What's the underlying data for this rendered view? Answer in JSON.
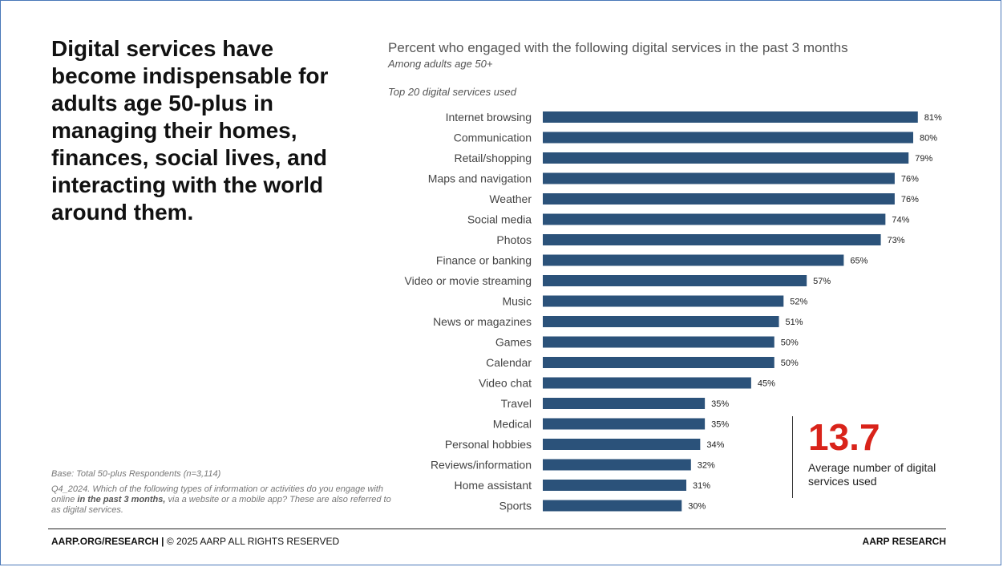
{
  "headline": "Digital services have become indispensable for adults age 50-plus in managing their homes, finances, social lives, and interacting with the world around them.",
  "chart_data": {
    "type": "bar",
    "orientation": "horizontal",
    "title": "Percent who engaged with the following digital services in the past 3 months",
    "subtitle": "Among adults age 50+",
    "caption": "Top 20 digital services used",
    "categories": [
      "Internet browsing",
      "Communication",
      "Retail/shopping",
      "Maps and navigation",
      "Weather",
      "Social media",
      "Photos",
      "Finance or banking",
      "Video or movie streaming",
      "Music",
      "News or magazines",
      "Games",
      "Calendar",
      "Video chat",
      "Travel",
      "Medical",
      "Personal hobbies",
      "Reviews/information",
      "Home assistant",
      "Sports"
    ],
    "values": [
      81,
      80,
      79,
      76,
      76,
      74,
      73,
      65,
      57,
      52,
      51,
      50,
      50,
      45,
      35,
      35,
      34,
      32,
      31,
      30
    ],
    "value_suffix": "%",
    "xlim": [
      0,
      100
    ],
    "grid": false,
    "bar_color": "#2b527a"
  },
  "callout": {
    "value": "13.7",
    "text": "Average number of digital services used",
    "color": "#d9231a"
  },
  "notes": {
    "base": "Base: Total 50-plus Respondents (n=3,114)",
    "question_prefix": "Q4_2024. Which of the following types of information or activities do you engage with online ",
    "question_bold": "in the past 3 months,",
    "question_suffix": " via a website or a mobile app? These are also referred to as digital services."
  },
  "footer": {
    "left_bold": "AARP.ORG/RESEARCH |",
    "left_rest": " © 2025 AARP ALL RIGHTS RESERVED",
    "right": "AARP RESEARCH"
  }
}
